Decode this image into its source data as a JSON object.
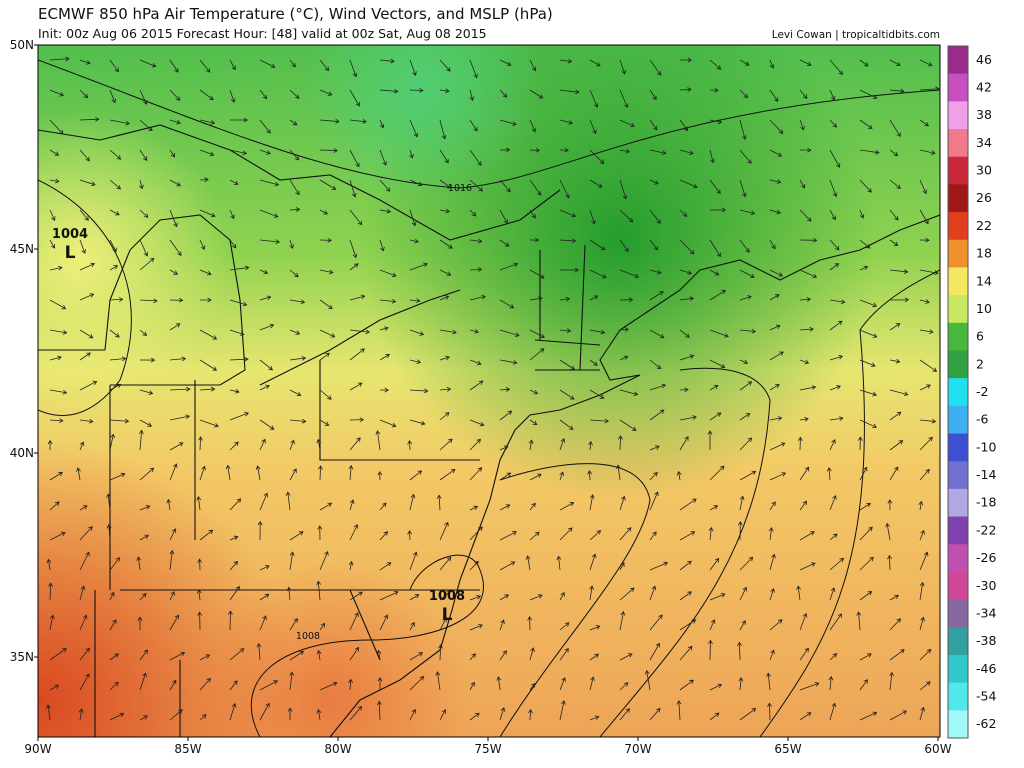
{
  "header": {
    "title": "ECMWF 850 hPa Air Temperature (°C), Wind Vectors, and MSLP (hPa)",
    "subtitle": "Init: 00z Aug 06 2015   Forecast Hour: [48]   valid at 00z Sat, Aug 08 2015",
    "credit": "Levi Cowan | tropicaltidbits.com"
  },
  "map": {
    "lat_labels": [
      "50N",
      "45N",
      "40N",
      "35N"
    ],
    "lon_labels": [
      "90W",
      "85W",
      "80W",
      "75W",
      "70W",
      "65W",
      "60W"
    ],
    "lows": [
      {
        "pressure": "1004",
        "symbol": "L"
      },
      {
        "pressure": "1008",
        "symbol": "L"
      }
    ],
    "isobar_labels": [
      "1016",
      "1008"
    ]
  },
  "colorbar": {
    "labels": [
      "46",
      "42",
      "38",
      "34",
      "30",
      "26",
      "22",
      "18",
      "14",
      "10",
      "6",
      "2",
      "-2",
      "-6",
      "-10",
      "-14",
      "-18",
      "-22",
      "-26",
      "-30",
      "-34",
      "-38",
      "-46",
      "-54",
      "-62"
    ]
  }
}
